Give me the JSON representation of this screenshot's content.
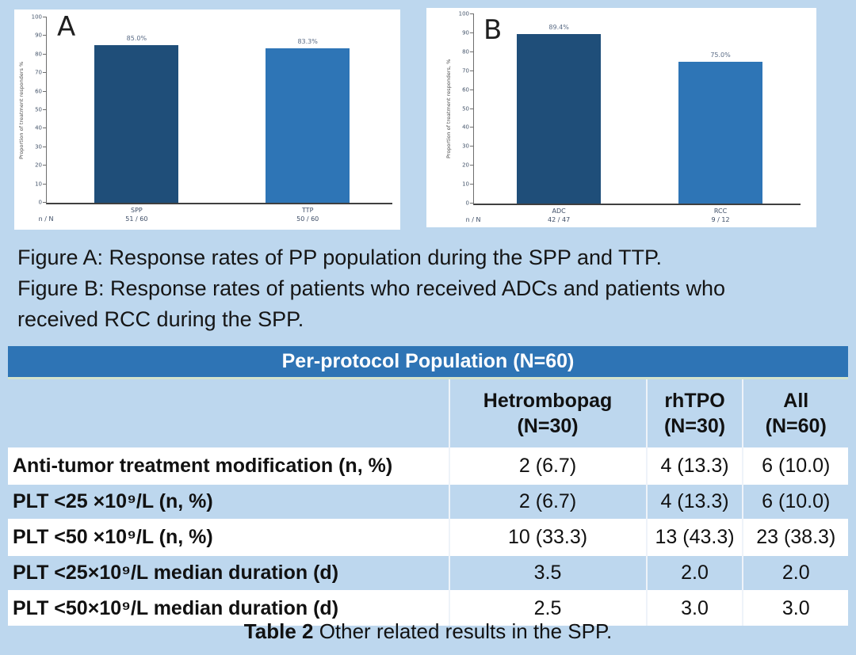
{
  "colors": {
    "page_bg": "#BDD7EE",
    "table_title_bg": "#2E74B5",
    "table_row_alt_bg": "#BDD7EE",
    "bar_dark": "#1F4E79",
    "bar_light": "#2E75B6"
  },
  "chart_data": [
    {
      "type": "bar",
      "panel_label": "A",
      "title": "",
      "ylabel": "Proportion of treatment responders %",
      "xlabel": "",
      "ylim": [
        0,
        100
      ],
      "yticks": [
        0,
        10,
        20,
        30,
        40,
        50,
        60,
        70,
        80,
        90,
        100
      ],
      "grid": false,
      "legend": "none",
      "categories": [
        "SPP",
        "TTP"
      ],
      "values": [
        85.0,
        83.3
      ],
      "bar_labels": [
        "85.0%",
        "83.3%"
      ],
      "bar_colors": [
        "#1F4E79",
        "#2E75B6"
      ],
      "n_label": "n / N",
      "n_over_N": [
        "51 / 60",
        "50 / 60"
      ]
    },
    {
      "type": "bar",
      "panel_label": "B",
      "title": "",
      "ylabel": "Proportion of treatment responders, %",
      "xlabel": "",
      "ylim": [
        0,
        100
      ],
      "yticks": [
        0,
        10,
        20,
        30,
        40,
        50,
        60,
        70,
        80,
        90,
        100
      ],
      "grid": false,
      "legend": "none",
      "categories": [
        "ADC",
        "RCC"
      ],
      "values": [
        89.4,
        75.0
      ],
      "bar_labels": [
        "89.4%",
        "75.0%"
      ],
      "bar_colors": [
        "#1F4E79",
        "#2E75B6"
      ],
      "n_label": "n / N",
      "n_over_N": [
        "42 / 47",
        "9 / 12"
      ]
    }
  ],
  "captions": {
    "lines": [
      "Figure A: Response rates of PP population during the SPP and TTP.",
      "Figure B: Response rates of patients who received ADCs and patients who",
      "received RCC during the SPP."
    ]
  },
  "table": {
    "title": "Per-protocol Population (N=60)",
    "columns": [
      {
        "line1": "Hetrombopag",
        "line2": "(N=30)"
      },
      {
        "line1": "rhTPO",
        "line2": "(N=30)"
      },
      {
        "line1": "All",
        "line2": "(N=60)"
      }
    ],
    "rows": [
      {
        "label": "Anti-tumor treatment modification (n, %)",
        "values": [
          "2 (6.7)",
          "4 (13.3)",
          "6 (10.0)"
        ]
      },
      {
        "label": "PLT <25 ×10⁹/L (n, %)",
        "values": [
          "2 (6.7)",
          "4 (13.3)",
          "6 (10.0)"
        ]
      },
      {
        "label": "PLT <50 ×10⁹/L (n, %)",
        "values": [
          "10 (33.3)",
          "13 (43.3)",
          "23 (38.3)"
        ]
      },
      {
        "label": "PLT <25×10⁹/L median duration (d)",
        "values": [
          "3.5",
          "2.0",
          "2.0"
        ]
      },
      {
        "label": "PLT <50×10⁹/L median duration (d)",
        "values": [
          "2.5",
          "3.0",
          "3.0"
        ]
      }
    ],
    "caption_bold": "Table 2",
    "caption_rest": " Other related results in the SPP."
  }
}
